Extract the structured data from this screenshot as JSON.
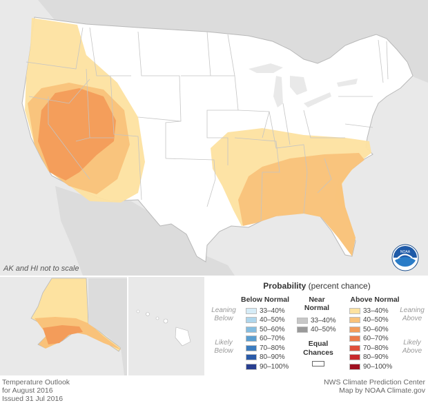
{
  "map": {
    "scale_note": "AK and HI not to scale"
  },
  "credits": {
    "left": [
      "Temperature Outlook",
      "for August 2016",
      "Issued 31 Jul 2016"
    ],
    "right": [
      "NWS Climate Prediction Center",
      "Map by NOAA Climate.gov"
    ]
  },
  "logo": {
    "text": "NOAA",
    "icon": "noaa-logo-icon"
  },
  "legend": {
    "title_bold": "Probability",
    "title_rest": " (percent chance)",
    "below_header": "Below Normal",
    "near_header_1": "Near",
    "near_header_2": "Normal",
    "above_header": "Above Normal",
    "equal_1": "Equal",
    "equal_2": "Chances",
    "leaning_below": [
      "Leaning",
      "Below"
    ],
    "likely_below": [
      "Likely",
      "Below"
    ],
    "leaning_above": [
      "Leaning",
      "Above"
    ],
    "likely_above": [
      "Likely",
      "Above"
    ],
    "below": [
      {
        "label": "33–40%",
        "color": "#d6ecf7"
      },
      {
        "label": "40–50%",
        "color": "#afd6ec"
      },
      {
        "label": "50–60%",
        "color": "#85bde0"
      },
      {
        "label": "60–70%",
        "color": "#5b9fd1"
      },
      {
        "label": "70–80%",
        "color": "#3c7cbf"
      },
      {
        "label": "80–90%",
        "color": "#2a5aa8"
      },
      {
        "label": "90–100%",
        "color": "#283e8f"
      }
    ],
    "near": [
      {
        "label": "33–40%",
        "color": "#c8c8c8"
      },
      {
        "label": "40–50%",
        "color": "#9a9a9a"
      }
    ],
    "above": [
      {
        "label": "33–40%",
        "color": "#fde2a0"
      },
      {
        "label": "40–50%",
        "color": "#f9c27a"
      },
      {
        "label": "50–60%",
        "color": "#f39c5a"
      },
      {
        "label": "60–70%",
        "color": "#ec7b4a"
      },
      {
        "label": "70–80%",
        "color": "#df4e3a"
      },
      {
        "label": "80–90%",
        "color": "#c8282c"
      },
      {
        "label": "90–100%",
        "color": "#9e1020"
      }
    ]
  }
}
